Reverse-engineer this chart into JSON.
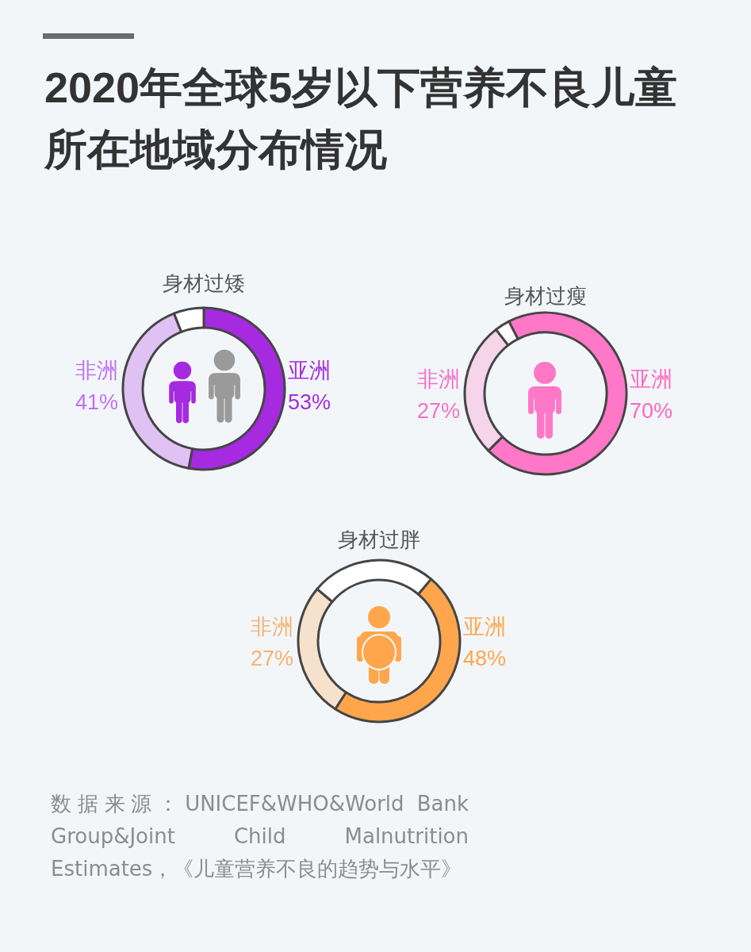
{
  "chart_data": [
    {
      "type": "other",
      "title": "2020年全球5岁以下营养不良儿童所在地域分布情况",
      "annotations": [
        "数据来源：UNICEF&WHO&World Bank Group&Joint Child Malnutrition Estimates，《儿童营养不良的趋势与水平》"
      ]
    },
    {
      "type": "donut",
      "title": "身材过矮",
      "categories": [
        "亚洲",
        "非洲",
        null
      ],
      "values": [
        53,
        41,
        6
      ],
      "colors": [
        "#a52ae0",
        "#dfc1f3",
        "#ffffff"
      ],
      "value_labels": [
        "53%",
        "41%",
        null
      ]
    },
    {
      "type": "donut",
      "title": "身材过瘦",
      "categories": [
        "亚洲",
        "非洲",
        null
      ],
      "values": [
        70,
        27,
        3
      ],
      "colors": [
        "#ff78c8",
        "#f6d4ea",
        "#ffffff"
      ],
      "value_labels": [
        "70%",
        "27%",
        null
      ]
    },
    {
      "type": "donut",
      "title": "身材过胖",
      "categories": [
        "亚洲",
        "非洲",
        null
      ],
      "values": [
        48,
        27,
        25
      ],
      "colors": [
        "#ffa64d",
        "#f6e1cc",
        "#ffffff"
      ],
      "value_labels": [
        "48%",
        "27%",
        null
      ]
    }
  ]
}
